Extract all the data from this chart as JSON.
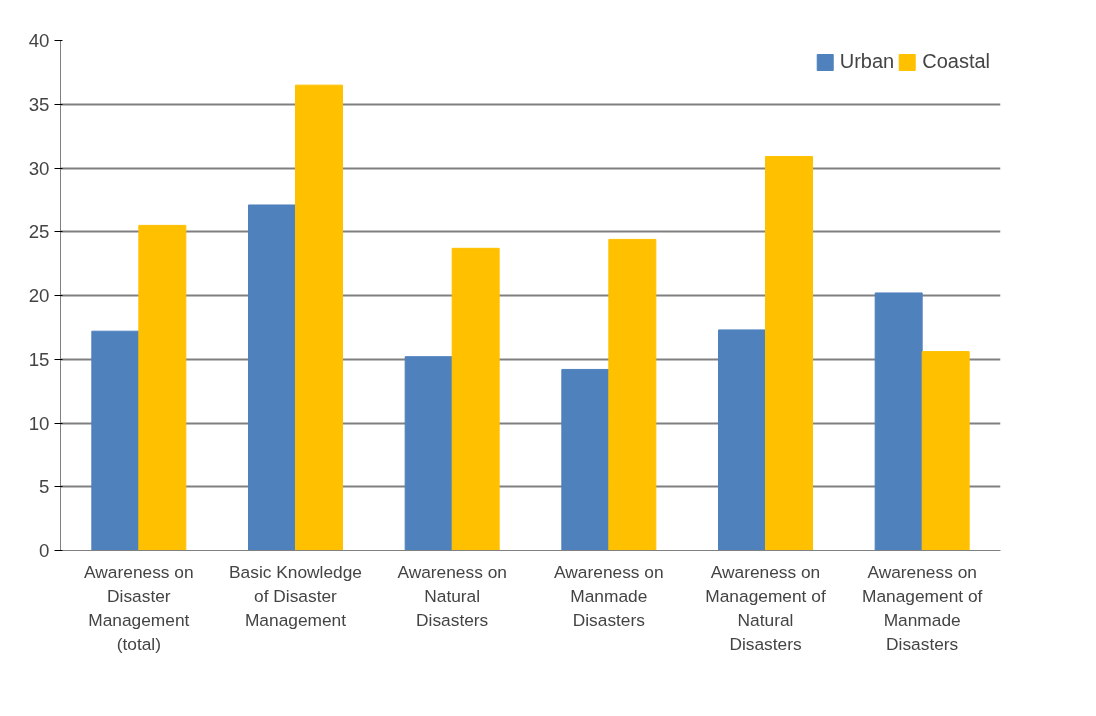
{
  "chart_data": {
    "type": "bar",
    "categories": [
      "Awareness on Disaster Management (total)",
      "Basic Knowledge of Disaster Management",
      "Awareness on Natural Disasters",
      "Awareness on Manmade Disasters",
      "Awareness on Management of Natural Disasters",
      "Awareness on Management of Manmade Disasters"
    ],
    "series": [
      {
        "name": "Urban",
        "color": "#4f81bd",
        "values": [
          17.2,
          27.1,
          15.2,
          14.2,
          17.3,
          20.2
        ]
      },
      {
        "name": "Coastal",
        "color": "#ffc000",
        "values": [
          25.5,
          36.5,
          23.7,
          24.4,
          30.9,
          15.6
        ]
      }
    ],
    "ylim": [
      0,
      40
    ],
    "yticks": [
      0,
      5,
      10,
      15,
      20,
      25,
      30,
      35,
      40
    ],
    "grid": "y",
    "legend": "top right"
  }
}
